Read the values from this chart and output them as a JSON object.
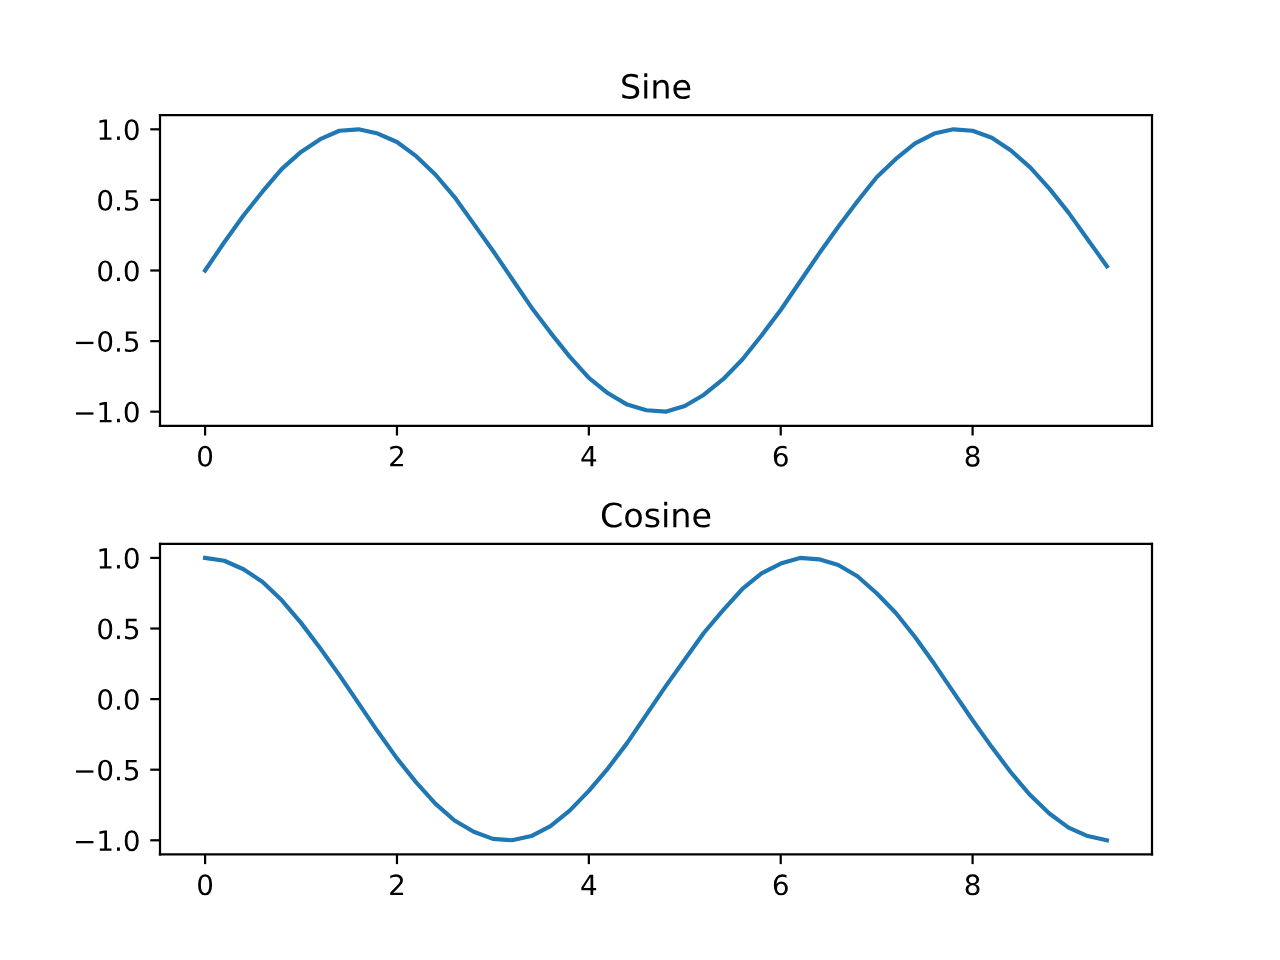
{
  "chart_data": [
    {
      "type": "line",
      "title": "Sine",
      "x": [
        0,
        0.2,
        0.4,
        0.6,
        0.8,
        1.0,
        1.2,
        1.4,
        1.6,
        1.8,
        2.0,
        2.2,
        2.4,
        2.6,
        2.8,
        3.0,
        3.2,
        3.4,
        3.6,
        3.8,
        4.0,
        4.2,
        4.4,
        4.6,
        4.8,
        5.0,
        5.2,
        5.4,
        5.6,
        5.8,
        6.0,
        6.2,
        6.4,
        6.6,
        6.8,
        7.0,
        7.2,
        7.4,
        7.6,
        7.8,
        8.0,
        8.2,
        8.4,
        8.6,
        8.8,
        9.0,
        9.2,
        9.4
      ],
      "series": [
        {
          "color": "#1f77b4",
          "values": [
            0,
            0.2,
            0.39,
            0.56,
            0.72,
            0.84,
            0.93,
            0.99,
            1.0,
            0.97,
            0.91,
            0.81,
            0.68,
            0.52,
            0.33,
            0.14,
            -0.06,
            -0.26,
            -0.44,
            -0.61,
            -0.76,
            -0.87,
            -0.95,
            -0.99,
            -1.0,
            -0.96,
            -0.88,
            -0.77,
            -0.63,
            -0.46,
            -0.28,
            -0.08,
            0.12,
            0.31,
            0.49,
            0.66,
            0.79,
            0.9,
            0.97,
            1.0,
            0.99,
            0.94,
            0.85,
            0.73,
            0.58,
            0.41,
            0.22,
            0.03
          ]
        }
      ],
      "xlim": [
        -0.47,
        9.87
      ],
      "ylim": [
        -1.1,
        1.1
      ],
      "xticks": [
        0,
        2,
        4,
        6,
        8
      ],
      "yticks": [
        {
          "value": -1,
          "label": "−1.0"
        },
        {
          "value": -0.5,
          "label": "−0.5"
        },
        {
          "value": 0,
          "label": "0.0"
        },
        {
          "value": 0.5,
          "label": "0.5"
        },
        {
          "value": 1,
          "label": "1.0"
        }
      ],
      "grid": false,
      "legend": false,
      "marker": "none",
      "line_style": "solid"
    },
    {
      "type": "line",
      "title": "Cosine",
      "x": [
        0,
        0.2,
        0.4,
        0.6,
        0.8,
        1.0,
        1.2,
        1.4,
        1.6,
        1.8,
        2.0,
        2.2,
        2.4,
        2.6,
        2.8,
        3.0,
        3.2,
        3.4,
        3.6,
        3.8,
        4.0,
        4.2,
        4.4,
        4.6,
        4.8,
        5.0,
        5.2,
        5.4,
        5.6,
        5.8,
        6.0,
        6.2,
        6.4,
        6.6,
        6.8,
        7.0,
        7.2,
        7.4,
        7.6,
        7.8,
        8.0,
        8.2,
        8.4,
        8.6,
        8.8,
        9.0,
        9.2,
        9.4
      ],
      "series": [
        {
          "color": "#1f77b4",
          "values": [
            1.0,
            0.98,
            0.92,
            0.83,
            0.7,
            0.54,
            0.36,
            0.17,
            -0.03,
            -0.23,
            -0.42,
            -0.59,
            -0.74,
            -0.86,
            -0.94,
            -0.99,
            -1.0,
            -0.97,
            -0.9,
            -0.79,
            -0.65,
            -0.49,
            -0.31,
            -0.11,
            0.09,
            0.28,
            0.47,
            0.63,
            0.78,
            0.89,
            0.96,
            1.0,
            0.99,
            0.95,
            0.87,
            0.75,
            0.61,
            0.44,
            0.25,
            0.05,
            -0.15,
            -0.34,
            -0.52,
            -0.68,
            -0.81,
            -0.91,
            -0.97,
            -1.0
          ]
        }
      ],
      "xlim": [
        -0.47,
        9.87
      ],
      "ylim": [
        -1.1,
        1.1
      ],
      "xticks": [
        0,
        2,
        4,
        6,
        8
      ],
      "yticks": [
        {
          "value": -1,
          "label": "−1.0"
        },
        {
          "value": -0.5,
          "label": "−0.5"
        },
        {
          "value": 0,
          "label": "0.0"
        },
        {
          "value": 0.5,
          "label": "0.5"
        },
        {
          "value": 1,
          "label": "1.0"
        }
      ],
      "grid": false,
      "legend": false,
      "marker": "none",
      "line_style": "solid"
    }
  ]
}
